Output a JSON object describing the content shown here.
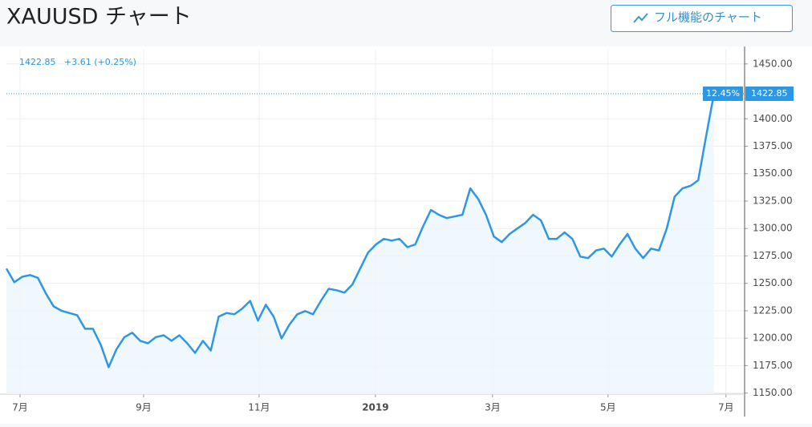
{
  "header": {
    "title": "XAUUSD チャート",
    "button": "フル機能のチャート"
  },
  "chart_data": {
    "type": "line",
    "legend_change": "+3.61 (+0.25%)",
    "price_tag_change": "12.45%",
    "color": "#2e97e4",
    "series": [
      {
        "name": "XAUUSD",
        "color": "#2e97e4",
        "values": [
          1263.5,
          1251,
          1256,
          1257.6,
          1255,
          1241,
          1229,
          1225,
          1223,
          1221,
          1208.6,
          1208.6,
          1194,
          1173.5,
          1190,
          1201,
          1205,
          1197.6,
          1195.4,
          1201,
          1202.7,
          1197.6,
          1202.7,
          1195.4,
          1186.6,
          1197.6,
          1188.8,
          1219.6,
          1223,
          1221.8,
          1227,
          1234,
          1216,
          1230.5,
          1219.6,
          1199.8,
          1212.3,
          1221.8,
          1224.7,
          1221.8,
          1234,
          1245,
          1243.7,
          1241.5,
          1248.8,
          1263.5,
          1278,
          1285.4,
          1290.5,
          1289,
          1290.5,
          1283,
          1285.4,
          1302,
          1316.9,
          1312.5,
          1309.5,
          1311,
          1312.5,
          1336.6,
          1327,
          1312.5,
          1292.7,
          1287.6,
          1295,
          1300,
          1305,
          1312.5,
          1307.4,
          1290.5,
          1290.5,
          1296.4,
          1290.5,
          1274.4,
          1273,
          1280,
          1281.7,
          1274.4,
          1285.4,
          1295,
          1281.7,
          1273,
          1281.7,
          1280,
          1300,
          1329,
          1336.6,
          1338.8,
          1344,
          1384,
          1422.85
        ]
      }
    ],
    "xlim": [
      0,
      93.9
    ],
    "xticks": [
      {
        "value": 1.73,
        "label": "7月"
      },
      {
        "value": 17.45,
        "label": "9月"
      },
      {
        "value": 32.14,
        "label": "11月"
      },
      {
        "value": 46.94,
        "label": "2019"
      },
      {
        "value": 61.84,
        "label": "3月"
      },
      {
        "value": 76.53,
        "label": "5月"
      },
      {
        "value": 91.53,
        "label": "7月"
      }
    ],
    "ylim": [
      1149,
      1463
    ],
    "yticks": [
      {
        "value": 1150,
        "label": "1150.00"
      },
      {
        "value": 1175,
        "label": "1175.00"
      },
      {
        "value": 1200,
        "label": "1200.00"
      },
      {
        "value": 1225,
        "label": "1225.00"
      },
      {
        "value": 1250,
        "label": "1250.00"
      },
      {
        "value": 1275,
        "label": "1275.00"
      },
      {
        "value": 1300,
        "label": "1300.00"
      },
      {
        "value": 1325,
        "label": "1325.00"
      },
      {
        "value": 1350,
        "label": "1350.00"
      },
      {
        "value": 1375,
        "label": "1375.00"
      },
      {
        "value": 1400,
        "label": "1400.00"
      },
      {
        "value": 1450,
        "label": "1450.00"
      }
    ],
    "grid": true
  }
}
